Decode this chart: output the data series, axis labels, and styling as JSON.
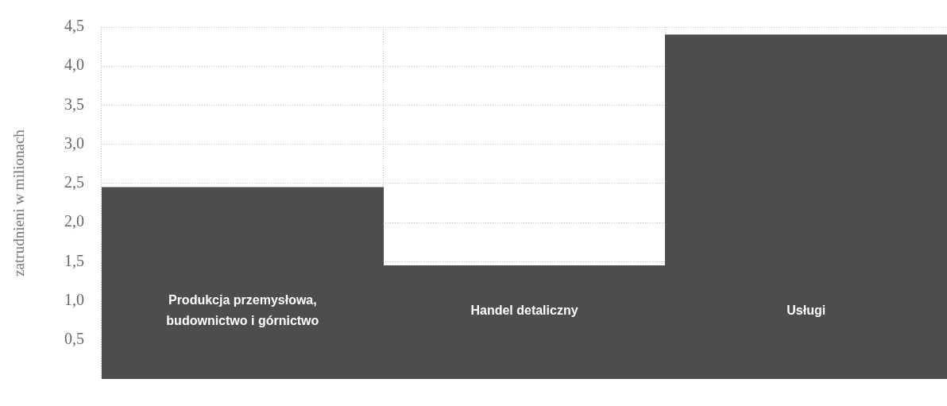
{
  "chart_data": {
    "type": "bar",
    "ylabel": "zatrudnieni w milionach",
    "categories": [
      "Produkcja przemysłowa, budownictwo i górnictwo",
      "Handel detaliczny",
      "Usługi"
    ],
    "values": [
      2.45,
      1.45,
      4.4
    ],
    "color": "#4d4d4d",
    "ylim": [
      0,
      4.5
    ],
    "yticks": [
      {
        "value": 0.5,
        "label": "0,5"
      },
      {
        "value": 1,
        "label": "1,0"
      },
      {
        "value": 1.5,
        "label": "1,5"
      },
      {
        "value": 2,
        "label": "2,0"
      },
      {
        "value": 2.5,
        "label": "2,5"
      },
      {
        "value": 3,
        "label": "3,0"
      },
      {
        "value": 3.5,
        "label": "3,5"
      },
      {
        "value": 4,
        "label": "4,0"
      },
      {
        "value": 4.5,
        "label": "4,5"
      }
    ],
    "grid": true
  }
}
